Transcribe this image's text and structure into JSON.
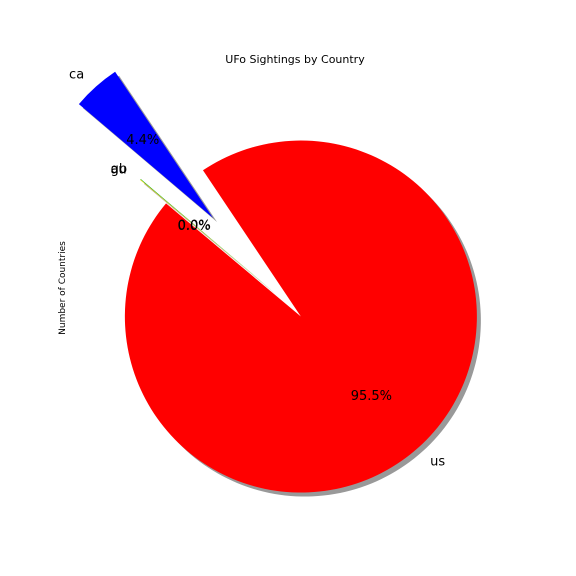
{
  "chart_data": {
    "type": "pie",
    "title": "UFo Sightings by Country",
    "ylabel": "Number of Countries",
    "start_angle_deg": 140,
    "direction": "counterclockwise",
    "shadow": true,
    "slices": [
      {
        "label": "us",
        "value": 95.5,
        "pct_label": "95.5%",
        "color": "#ff0000",
        "explode": 0.05
      },
      {
        "label": "ca",
        "value": 4.4,
        "pct_label": "4.4%",
        "color": "#0000ff",
        "explode": 0.7
      },
      {
        "label": "gb",
        "value": 0.05,
        "pct_label": "0.0%",
        "color": "#00aa00",
        "explode": 0.15
      },
      {
        "label": "au",
        "value": 0.05,
        "pct_label": "0.0%",
        "color": "#ffd700",
        "explode": 0.15
      }
    ]
  }
}
